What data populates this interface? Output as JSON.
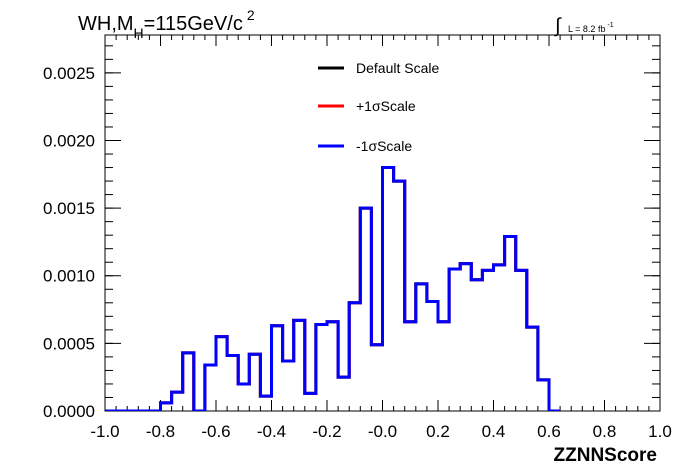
{
  "chart_data": {
    "type": "line",
    "title_main": "WH,M",
    "title_sub": "H",
    "title_value": "=115GeV/c",
    "title_sup": "2",
    "lumi_text": "L = 8.2 fb",
    "lumi_sup": "-1",
    "lumi_integral": "∫",
    "xlabel": "ZZNNScore",
    "ylabel": "",
    "xlim": [
      -1.0,
      1.0
    ],
    "ylim": [
      0.0,
      0.0028
    ],
    "x_ticks": [
      "-1.0",
      "-0.8",
      "-0.6",
      "-0.4",
      "-0.2",
      "-0.0",
      "0.2",
      "0.4",
      "0.6",
      "0.8",
      "1.0"
    ],
    "y_ticks": [
      "0.0000",
      "0.0005",
      "0.0010",
      "0.0015",
      "0.0020",
      "0.0025"
    ],
    "legend_position": "top-center",
    "bin_edges_start": -1.0,
    "bin_width": 0.04,
    "series": [
      {
        "name": "Default Scale",
        "color": "#000000",
        "values": [
          0,
          0,
          0,
          0,
          0,
          6e-05,
          0.00014,
          0.00043,
          0,
          0.00034,
          0.00055,
          0.00041,
          0.0002,
          0.00042,
          0.00011,
          0.00063,
          0.00037,
          0.00067,
          0.00013,
          0.00064,
          0.00066,
          0.00025,
          0.0008,
          0.0015,
          0.00049,
          0.0018,
          0.0017,
          0.00066,
          0.00094,
          0.00081,
          0.00066,
          0.00105,
          0.00109,
          0.00097,
          0.00104,
          0.00108,
          0.00129,
          0.00104,
          0.00062,
          0.00023,
          0
        ]
      },
      {
        "name": "+1σScale",
        "color": "#ff0000",
        "values": [
          0,
          0,
          0,
          0,
          0,
          6e-05,
          0.00014,
          0.00043,
          0,
          0.00034,
          0.00055,
          0.00041,
          0.0002,
          0.00042,
          0.00011,
          0.00063,
          0.00037,
          0.00067,
          0.00013,
          0.00064,
          0.00066,
          0.00025,
          0.0008,
          0.0015,
          0.00049,
          0.0018,
          0.0017,
          0.00066,
          0.00094,
          0.00081,
          0.00066,
          0.00105,
          0.00109,
          0.00097,
          0.00104,
          0.00108,
          0.00129,
          0.00104,
          0.00062,
          0.00023,
          0
        ]
      },
      {
        "name": "-1σScale",
        "color": "#0000ff",
        "values": [
          0,
          0,
          0,
          0,
          0,
          6e-05,
          0.00014,
          0.00043,
          0,
          0.00034,
          0.00055,
          0.00041,
          0.0002,
          0.00042,
          0.00011,
          0.00063,
          0.00037,
          0.00067,
          0.00013,
          0.00064,
          0.00066,
          0.00025,
          0.0008,
          0.0015,
          0.00049,
          0.0018,
          0.0017,
          0.00066,
          0.00094,
          0.00081,
          0.00066,
          0.00105,
          0.00109,
          0.00097,
          0.00104,
          0.00108,
          0.00129,
          0.00104,
          0.00062,
          0.00023,
          0
        ]
      }
    ]
  }
}
